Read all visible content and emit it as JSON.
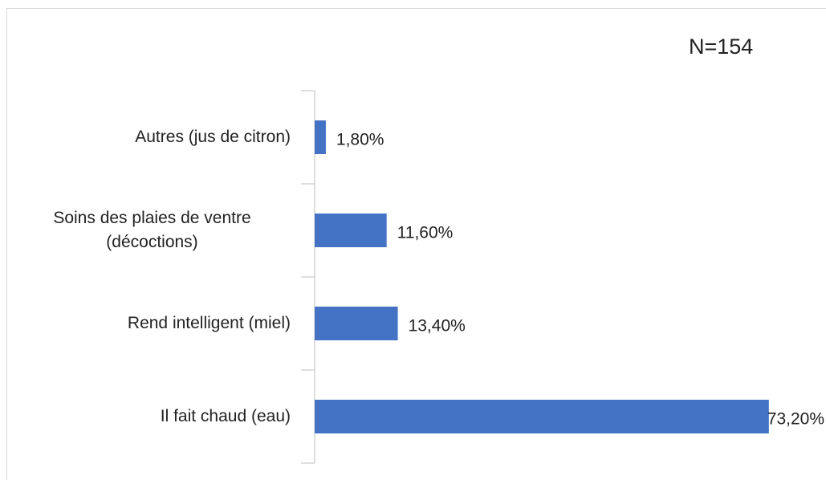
{
  "chart_data": {
    "type": "barh",
    "annotation": "N=154",
    "categories": [
      "Autres (jus de citron)",
      "Soins des plaies de ventre (décoctions)",
      "Rend intelligent (miel)",
      "Il fait chaud (eau)"
    ],
    "values": [
      1.8,
      11.6,
      13.4,
      73.2
    ],
    "value_labels": [
      "1,80%",
      "11,60%",
      "13,40%",
      "73,20%"
    ],
    "color": "#4472c4"
  }
}
